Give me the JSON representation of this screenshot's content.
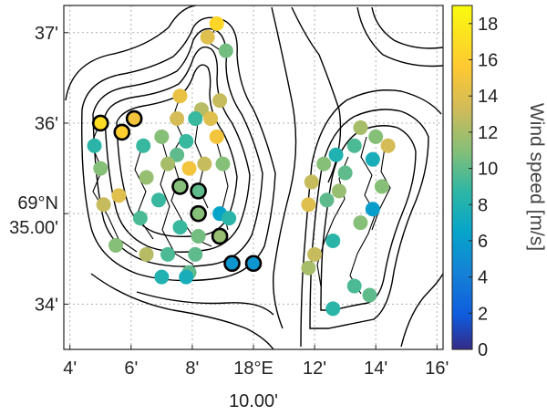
{
  "map": {
    "x_ticks": [
      {
        "label": "4'",
        "lon_min": 4
      },
      {
        "label": "6'",
        "lon_min": 6
      },
      {
        "label": "8'",
        "lon_min": 8
      },
      {
        "label": "18°E",
        "lon_min": 10
      },
      {
        "label": "12'",
        "lon_min": 12
      },
      {
        "label": "14'",
        "lon_min": 14
      },
      {
        "label": "16'",
        "lon_min": 16
      }
    ],
    "x_sublabel": "10.00'",
    "y_ticks": [
      {
        "label": "37'",
        "lat_min": 37
      },
      {
        "label": "36'",
        "lat_min": 36
      },
      {
        "label": "35.00'",
        "lat_min": 35,
        "prefix": "69°N"
      },
      {
        "label": "34'",
        "lat_min": 34
      }
    ],
    "x_range_min": [
      3.8,
      16.2
    ],
    "y_range_min": [
      33.5,
      37.3
    ],
    "colorbar": {
      "title": "Wind speed [m/s]",
      "ticks": [
        0,
        2,
        4,
        6,
        8,
        10,
        12,
        14,
        16,
        18
      ],
      "range": [
        0,
        19
      ]
    },
    "stations": [
      {
        "lon": 8.8,
        "lat": 37.1,
        "ws": 16.5,
        "highlight": false
      },
      {
        "lon": 8.5,
        "lat": 36.95,
        "ws": 14.0,
        "highlight": false
      },
      {
        "lon": 9.1,
        "lat": 36.8,
        "ws": 10.5,
        "highlight": false
      },
      {
        "lon": 7.6,
        "lat": 36.3,
        "ws": 14.5,
        "highlight": false
      },
      {
        "lon": 8.3,
        "lat": 36.15,
        "ws": 12.5,
        "highlight": false
      },
      {
        "lon": 8.9,
        "lat": 36.25,
        "ws": 13.0,
        "highlight": false
      },
      {
        "lon": 7.5,
        "lat": 36.05,
        "ws": 13.5,
        "highlight": false
      },
      {
        "lon": 8.1,
        "lat": 36.05,
        "ws": 9.0,
        "highlight": false
      },
      {
        "lon": 8.6,
        "lat": 36.05,
        "ws": 14.0,
        "highlight": false
      },
      {
        "lon": 5.0,
        "lat": 36.0,
        "ws": 17.0,
        "highlight": true
      },
      {
        "lon": 5.7,
        "lat": 35.9,
        "ws": 16.0,
        "highlight": true
      },
      {
        "lon": 6.1,
        "lat": 36.05,
        "ws": 15.0,
        "highlight": true
      },
      {
        "lon": 4.8,
        "lat": 35.75,
        "ws": 8.5,
        "highlight": false
      },
      {
        "lon": 6.4,
        "lat": 35.75,
        "ws": 9.0,
        "highlight": false
      },
      {
        "lon": 7.0,
        "lat": 35.85,
        "ws": 11.0,
        "highlight": false
      },
      {
        "lon": 7.8,
        "lat": 35.8,
        "ws": 9.0,
        "highlight": false
      },
      {
        "lon": 8.8,
        "lat": 35.85,
        "ws": 15.0,
        "highlight": false
      },
      {
        "lon": 7.5,
        "lat": 35.65,
        "ws": 10.0,
        "highlight": false
      },
      {
        "lon": 7.2,
        "lat": 35.55,
        "ws": 12.0,
        "highlight": false
      },
      {
        "lon": 7.9,
        "lat": 35.5,
        "ws": 15.0,
        "highlight": false
      },
      {
        "lon": 8.4,
        "lat": 35.55,
        "ws": 13.0,
        "highlight": false
      },
      {
        "lon": 9.0,
        "lat": 35.55,
        "ws": 11.0,
        "highlight": false
      },
      {
        "lon": 5.0,
        "lat": 35.5,
        "ws": 11.0,
        "highlight": false
      },
      {
        "lon": 6.5,
        "lat": 35.4,
        "ws": 11.5,
        "highlight": false
      },
      {
        "lon": 7.6,
        "lat": 35.3,
        "ws": 11.0,
        "highlight": true
      },
      {
        "lon": 8.2,
        "lat": 35.25,
        "ws": 10.0,
        "highlight": true
      },
      {
        "lon": 5.6,
        "lat": 35.2,
        "ws": 14.0,
        "highlight": false
      },
      {
        "lon": 5.1,
        "lat": 35.1,
        "ws": 13.0,
        "highlight": false
      },
      {
        "lon": 6.9,
        "lat": 35.15,
        "ws": 9.0,
        "highlight": false
      },
      {
        "lon": 8.2,
        "lat": 35.0,
        "ws": 11.0,
        "highlight": true
      },
      {
        "lon": 8.9,
        "lat": 35.0,
        "ws": 6.5,
        "highlight": false
      },
      {
        "lon": 9.2,
        "lat": 34.95,
        "ws": 8.5,
        "highlight": false
      },
      {
        "lon": 6.3,
        "lat": 34.95,
        "ws": 9.5,
        "highlight": false
      },
      {
        "lon": 7.6,
        "lat": 34.85,
        "ws": 9.0,
        "highlight": false
      },
      {
        "lon": 8.2,
        "lat": 34.75,
        "ws": 10.5,
        "highlight": false
      },
      {
        "lon": 8.9,
        "lat": 34.75,
        "ws": 11.5,
        "highlight": true
      },
      {
        "lon": 5.5,
        "lat": 34.65,
        "ws": 11.0,
        "highlight": false
      },
      {
        "lon": 6.5,
        "lat": 34.55,
        "ws": 12.5,
        "highlight": false
      },
      {
        "lon": 7.2,
        "lat": 34.55,
        "ws": 9.5,
        "highlight": false
      },
      {
        "lon": 8.1,
        "lat": 34.55,
        "ws": 10.0,
        "highlight": false
      },
      {
        "lon": 9.3,
        "lat": 34.45,
        "ws": 5.5,
        "highlight": true
      },
      {
        "lon": 10.0,
        "lat": 34.45,
        "ws": 5.5,
        "highlight": true
      },
      {
        "lon": 7.9,
        "lat": 34.35,
        "ws": 10.0,
        "highlight": false
      },
      {
        "lon": 7.0,
        "lat": 34.3,
        "ws": 8.0,
        "highlight": false
      },
      {
        "lon": 7.8,
        "lat": 34.3,
        "ws": 7.5,
        "highlight": false
      },
      {
        "lon": 13.5,
        "lat": 35.95,
        "ws": 12.0,
        "highlight": false
      },
      {
        "lon": 14.0,
        "lat": 35.85,
        "ws": 11.0,
        "highlight": false
      },
      {
        "lon": 14.4,
        "lat": 35.75,
        "ws": 13.5,
        "highlight": false
      },
      {
        "lon": 13.3,
        "lat": 35.75,
        "ws": 9.5,
        "highlight": false
      },
      {
        "lon": 12.7,
        "lat": 35.65,
        "ws": 8.0,
        "highlight": false
      },
      {
        "lon": 13.9,
        "lat": 35.6,
        "ws": 7.5,
        "highlight": false
      },
      {
        "lon": 12.3,
        "lat": 35.55,
        "ws": 11.0,
        "highlight": false
      },
      {
        "lon": 13.0,
        "lat": 35.45,
        "ws": 10.0,
        "highlight": false
      },
      {
        "lon": 11.9,
        "lat": 35.35,
        "ws": 13.0,
        "highlight": false
      },
      {
        "lon": 14.2,
        "lat": 35.3,
        "ws": 11.0,
        "highlight": false
      },
      {
        "lon": 12.8,
        "lat": 35.25,
        "ws": 11.5,
        "highlight": false
      },
      {
        "lon": 12.4,
        "lat": 35.15,
        "ws": 10.0,
        "highlight": false
      },
      {
        "lon": 11.8,
        "lat": 35.1,
        "ws": 14.0,
        "highlight": false
      },
      {
        "lon": 13.9,
        "lat": 35.05,
        "ws": 6.0,
        "highlight": false
      },
      {
        "lon": 13.5,
        "lat": 34.9,
        "ws": 11.0,
        "highlight": false
      },
      {
        "lon": 12.6,
        "lat": 34.7,
        "ws": 8.5,
        "highlight": false
      },
      {
        "lon": 12.0,
        "lat": 34.55,
        "ws": 13.0,
        "highlight": false
      },
      {
        "lon": 11.8,
        "lat": 34.4,
        "ws": 12.0,
        "highlight": false
      },
      {
        "lon": 13.3,
        "lat": 34.2,
        "ws": 9.5,
        "highlight": false
      },
      {
        "lon": 13.8,
        "lat": 34.1,
        "ws": 10.0,
        "highlight": false
      },
      {
        "lon": 12.6,
        "lat": 33.95,
        "ws": 8.5,
        "highlight": false
      }
    ]
  }
}
